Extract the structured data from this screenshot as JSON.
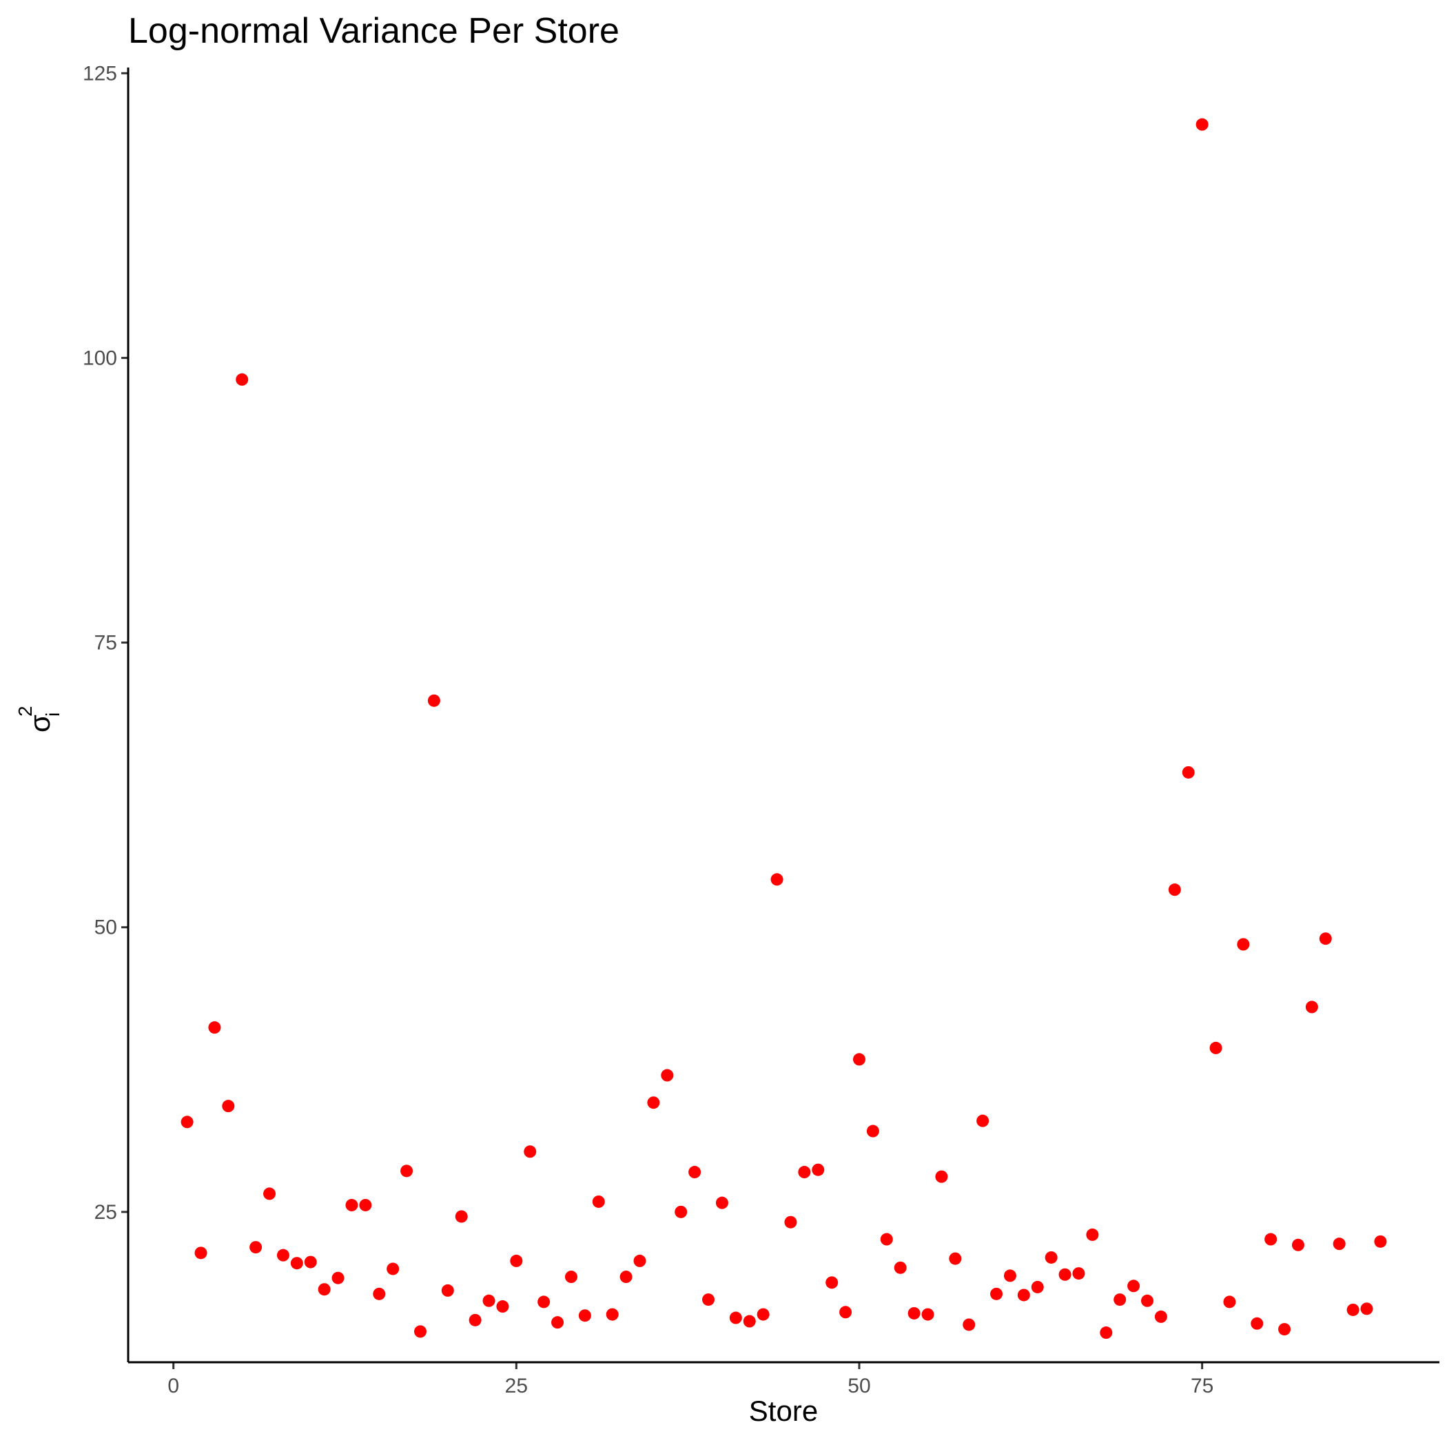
{
  "chart_data": {
    "type": "scatter",
    "title": "Log-normal Variance Per Store",
    "xlabel": "Store",
    "ylabel": "σ",
    "ylabel_superscript": "2",
    "ylabel_subscript": "i",
    "xlim": [
      -3.3,
      92.3
    ],
    "ylim": [
      11.8,
      125.5
    ],
    "xticks": [
      0,
      25,
      50,
      75
    ],
    "yticks": [
      25,
      50,
      75,
      100,
      125
    ],
    "grid": false,
    "legend": "none",
    "point_color": "#ff0000",
    "x": [
      1,
      2,
      3,
      4,
      5,
      6,
      7,
      8,
      9,
      10,
      11,
      12,
      13,
      14,
      15,
      16,
      17,
      18,
      19,
      20,
      21,
      22,
      23,
      24,
      25,
      26,
      27,
      28,
      29,
      30,
      31,
      32,
      33,
      34,
      35,
      36,
      37,
      38,
      39,
      40,
      41,
      42,
      43,
      44,
      45,
      46,
      47,
      48,
      49,
      50,
      51,
      52,
      53,
      54,
      55,
      56,
      57,
      58,
      59,
      60,
      61,
      62,
      63,
      64,
      65,
      66,
      67,
      68,
      69,
      70,
      71,
      72,
      73,
      74,
      75,
      76,
      77,
      78,
      79,
      80,
      81,
      82,
      83,
      84,
      85,
      86,
      87,
      88
    ],
    "y": [
      32.9,
      21.4,
      41.2,
      34.3,
      98.1,
      21.9,
      26.6,
      21.2,
      20.5,
      20.6,
      18.2,
      19.2,
      25.6,
      25.6,
      17.8,
      20.0,
      28.6,
      14.5,
      69.9,
      18.1,
      24.6,
      15.5,
      17.2,
      16.7,
      20.7,
      30.3,
      17.1,
      15.3,
      19.3,
      15.9,
      25.9,
      16.0,
      19.3,
      20.7,
      34.6,
      37.0,
      25.0,
      28.5,
      17.3,
      25.8,
      15.7,
      15.4,
      16.0,
      54.2,
      24.1,
      28.5,
      28.7,
      18.8,
      16.2,
      38.4,
      32.1,
      22.6,
      20.1,
      16.1,
      16.0,
      28.1,
      20.9,
      15.1,
      33.0,
      17.8,
      19.4,
      17.7,
      18.4,
      21.0,
      19.5,
      19.6,
      23.0,
      14.4,
      17.3,
      18.5,
      17.2,
      15.8,
      53.3,
      63.6,
      120.5,
      39.4,
      17.1,
      48.5,
      15.2,
      22.6,
      14.7,
      22.1,
      43.0,
      49.0,
      22.2,
      16.4,
      16.5,
      22.4
    ]
  }
}
